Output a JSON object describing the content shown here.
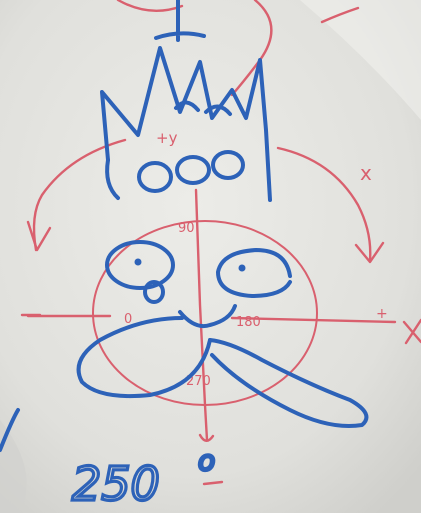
{
  "colors": {
    "board": "#e6e6e2",
    "board_shade": "#c9c9c5",
    "red_marker": "#d9606e",
    "blue_marker": "#2d62b8"
  },
  "annotations": {
    "top_label": "+y",
    "label_90": "90",
    "label_0": "0",
    "label_180": "180",
    "label_270": "270",
    "right_plus_near": "+",
    "right_plus_far": "+",
    "top_right_x": "x",
    "bottom_text": "250",
    "bottom_superscript": "o"
  }
}
